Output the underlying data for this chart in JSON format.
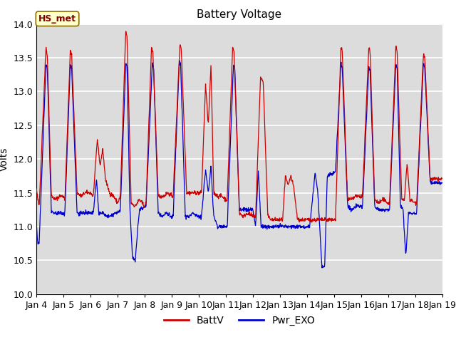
{
  "title": "Battery Voltage",
  "ylabel": "Volts",
  "ylim": [
    10.0,
    14.0
  ],
  "yticks": [
    10.0,
    10.5,
    11.0,
    11.5,
    12.0,
    12.5,
    13.0,
    13.5,
    14.0
  ],
  "date_labels": [
    "Jan 4",
    "Jan 5",
    "Jan 6",
    "Jan 7",
    "Jan 8",
    "Jan 9",
    "Jan 10",
    "Jan 11",
    "Jan 12",
    "Jan 13",
    "Jan 14",
    "Jan 15",
    "Jan 16",
    "Jan 17",
    "Jan 18",
    "Jan 19"
  ],
  "batt_color": "#cc0000",
  "pwr_color": "#0000cc",
  "bg_color": "#dcdcdc",
  "annotation_text": "HS_met",
  "annotation_box_facecolor": "#ffffcc",
  "annotation_box_edgecolor": "#8b7000",
  "annotation_text_color": "#800000",
  "legend_labels": [
    "BattV",
    "Pwr_EXO"
  ],
  "title_fontsize": 11,
  "ylabel_fontsize": 10,
  "tick_fontsize": 9,
  "n_days": 15,
  "pts_per_day": 96
}
